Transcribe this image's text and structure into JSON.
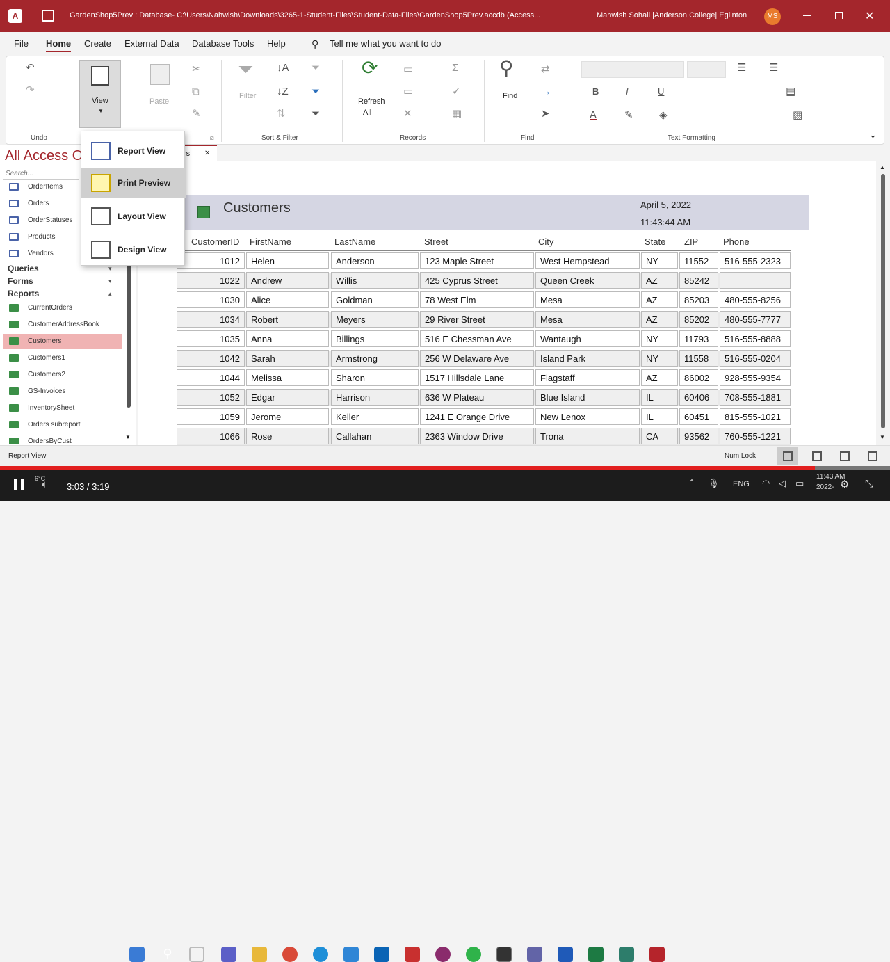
{
  "title_bar": {
    "app_title": "GardenShop5Prev : Database- C:\\Users\\Nahwish\\Downloads\\3265-1-Student-Files\\Student-Data-Files\\GardenShop5Prev.accdb (Access...",
    "user": "Mahwish Sohail |Anderson College| Eglinton",
    "avatar": "MS"
  },
  "menu": [
    "File",
    "Home",
    "Create",
    "External Data",
    "Database Tools",
    "Help"
  ],
  "tell_me": "Tell me what you want to do",
  "ribbon": {
    "view_label": "View",
    "paste_label": "Paste",
    "filter_label": "Filter",
    "refresh_label": "Refresh",
    "refresh_all": "All",
    "find_label": "Find",
    "groups": {
      "undo": "Undo",
      "sort_filter": "Sort & Filter",
      "records": "Records",
      "find": "Find",
      "text_formatting": "Text Formatting"
    }
  },
  "view_menu": [
    "Report View",
    "Print Preview",
    "Layout View",
    "Design View"
  ],
  "nav": {
    "title": "All Access Objects",
    "search_placeholder": "Search...",
    "tables": [
      "OrderItems",
      "Orders",
      "OrderStatuses",
      "Products",
      "Vendors"
    ],
    "sections": {
      "queries": "Queries",
      "forms": "Forms",
      "reports": "Reports"
    },
    "reports": [
      "CurrentOrders",
      "CustomerAddressBook",
      "Customers",
      "Customers1",
      "Customers2",
      "GS-Invoices",
      "InventorySheet",
      "Orders subreport",
      "OrdersByCust"
    ]
  },
  "doc_tab": "Customers",
  "report": {
    "title": "Customers",
    "date": "April 5, 2022",
    "time": "11:43:44 AM",
    "columns": [
      "CustomerID",
      "FirstName",
      "LastName",
      "Street",
      "City",
      "State",
      "ZIP",
      "Phone"
    ],
    "rows": [
      [
        "1012",
        "Helen",
        "Anderson",
        "123 Maple Street",
        "West Hempstead",
        "NY",
        "11552",
        "516-555-2323"
      ],
      [
        "1022",
        "Andrew",
        "Willis",
        "425 Cyprus Street",
        "Queen Creek",
        "AZ",
        "85242",
        ""
      ],
      [
        "1030",
        "Alice",
        "Goldman",
        "78 West Elm",
        "Mesa",
        "AZ",
        "85203",
        "480-555-8256"
      ],
      [
        "1034",
        "Robert",
        "Meyers",
        "29 River Street",
        "Mesa",
        "AZ",
        "85202",
        "480-555-7777"
      ],
      [
        "1035",
        "Anna",
        "Billings",
        "516 E Chessman Ave",
        "Wantaugh",
        "NY",
        "11793",
        "516-555-8888"
      ],
      [
        "1042",
        "Sarah",
        "Armstrong",
        "256 W Delaware Ave",
        "Island Park",
        "NY",
        "11558",
        "516-555-0204"
      ],
      [
        "1044",
        "Melissa",
        "Sharon",
        "1517 Hillsdale Lane",
        "Flagstaff",
        "AZ",
        "86002",
        "928-555-9354"
      ],
      [
        "1052",
        "Edgar",
        "Harrison",
        "636 W Plateau",
        "Blue Island",
        "IL",
        "60406",
        "708-555-1881"
      ],
      [
        "1059",
        "Jerome",
        "Keller",
        "1241 E Orange Drive",
        "New Lenox",
        "IL",
        "60451",
        "815-555-1021"
      ],
      [
        "1066",
        "Rose",
        "Callahan",
        "2363 Window Drive",
        "Trona",
        "CA",
        "93562",
        "760-555-1221"
      ]
    ]
  },
  "status_bar": {
    "left": "Report View",
    "num_lock": "Num Lock"
  },
  "video": {
    "time": "3:03 / 3:19",
    "progress": 0.916,
    "weather": "6°C"
  },
  "taskbar": {
    "lang": "ENG",
    "clock": "11:43 AM",
    "date": "2022-"
  },
  "colors": {
    "accent": "#a4262c",
    "progress": "#e21f1f",
    "report_header": "#d5d6e3"
  }
}
